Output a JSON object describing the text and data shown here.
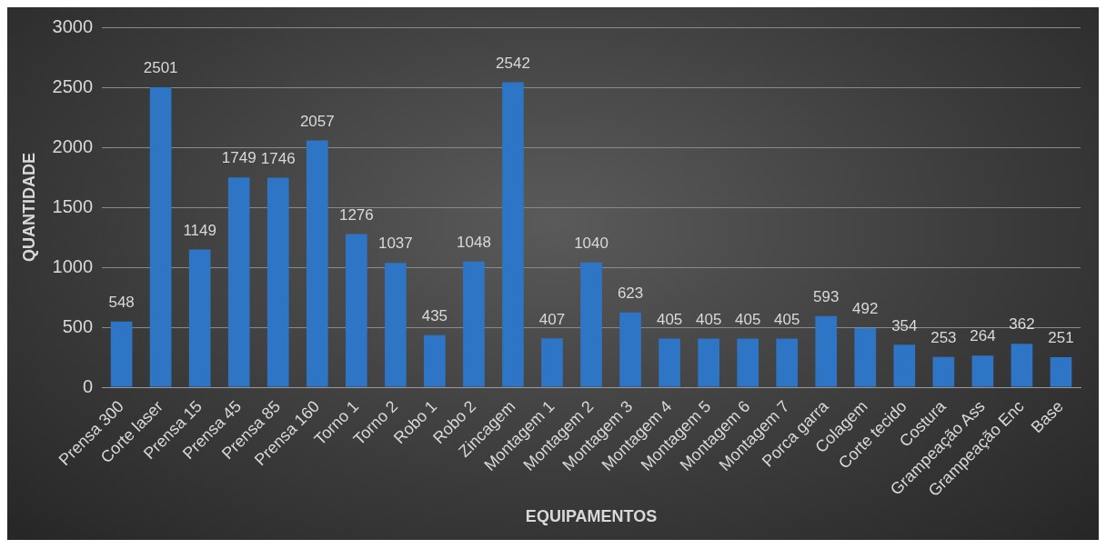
{
  "chart_data": {
    "type": "bar",
    "xlabel": "EQUIPAMENTOS",
    "ylabel": "QUANTIDADE",
    "categories": [
      "Prensa 300",
      "Corte laser",
      "Prensa 15",
      "Prensa 45",
      "Prensa 85",
      "Prensa 160",
      "Torno 1",
      "Torno 2",
      "Robo 1",
      "Robo 2",
      "Zincagem",
      "Montagem 1",
      "Montagem 2",
      "Montagem 3",
      "Montagem 4",
      "Montagem 5",
      "Montagem 6",
      "Montagem 7",
      "Porca garra",
      "Colagem",
      "Corte tecido",
      "Costura",
      "Grampeação Ass",
      "Grampeação Enc",
      "Base"
    ],
    "values": [
      548,
      2501,
      1149,
      1749,
      1746,
      2057,
      1276,
      1037,
      435,
      1048,
      2542,
      407,
      1040,
      623,
      405,
      405,
      405,
      405,
      593,
      492,
      354,
      253,
      264,
      362,
      251
    ],
    "color": "#2e75c6",
    "ylim": [
      0,
      3000
    ],
    "yticks": [
      0,
      500,
      1000,
      1500,
      2000,
      2500,
      3000
    ],
    "grid": "y",
    "data_labels": true,
    "legend": false
  }
}
